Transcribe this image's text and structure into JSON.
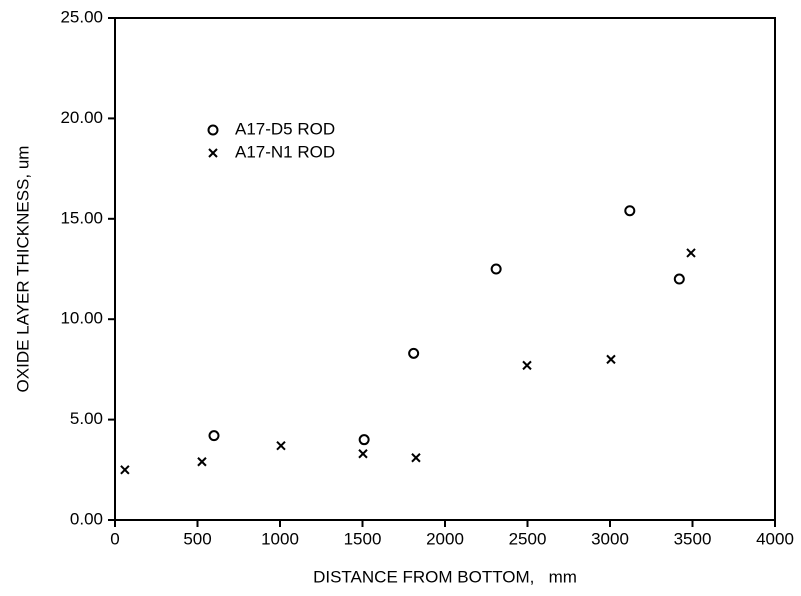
{
  "chart_data": {
    "type": "scatter",
    "x_label": "DISTANCE FROM BOTTOM,   mm",
    "y_label": "OXIDE LAYER THICKNESS, um",
    "xlim": [
      0,
      4000
    ],
    "xticks": [
      0,
      500,
      1000,
      1500,
      2000,
      2500,
      3000,
      3500,
      4000
    ],
    "ylim": [
      0,
      25
    ],
    "yticks": [
      {
        "value": 0,
        "label": "0.00"
      },
      {
        "value": 5,
        "label": "5.00"
      },
      {
        "value": 10,
        "label": "10.00"
      },
      {
        "value": 15,
        "label": "15.00"
      },
      {
        "value": 20,
        "label": "20.00"
      },
      {
        "value": 25,
        "label": "25.00"
      }
    ],
    "legend": "upper left",
    "series": [
      {
        "name": "A17-D5 ROD",
        "marker": "circle",
        "color": "#000000",
        "x": [
          600,
          1510,
          1810,
          2310,
          3120,
          3420
        ],
        "values": [
          4.2,
          4.0,
          8.3,
          12.5,
          15.4,
          12.0
        ]
      },
      {
        "name": "A17-N1 ROD",
        "marker": "cross",
        "color": "#000000",
        "x": [
          60,
          527,
          1006,
          1503,
          1824,
          2497,
          3006,
          3491
        ],
        "values": [
          2.5,
          2.9,
          3.7,
          3.3,
          3.1,
          7.7,
          8.0,
          13.3
        ]
      }
    ]
  }
}
